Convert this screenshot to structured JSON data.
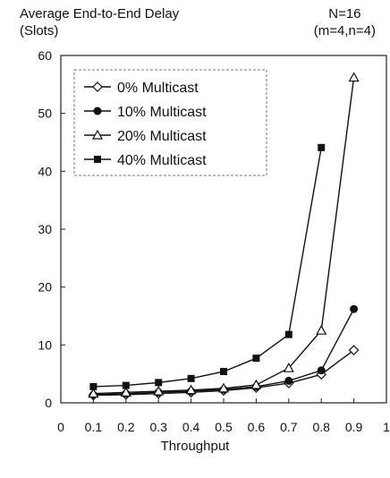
{
  "chart_data": {
    "type": "line",
    "ylabel_line1": "Average End-to-End Delay",
    "ylabel_line2": "(Slots)",
    "condition_line1": "N=16",
    "condition_line2": "(m=4,n=4)",
    "xlabel": "Throughput",
    "xlim": [
      0,
      1
    ],
    "ylim": [
      0,
      60
    ],
    "xticks": [
      "0",
      "0.1",
      "0.2",
      "0.3",
      "0.4",
      "0.5",
      "0.6",
      "0.7",
      "0.8",
      "0.9",
      "1"
    ],
    "yticks": [
      "0",
      "10",
      "20",
      "30",
      "40",
      "50",
      "60"
    ],
    "grid": false,
    "legend_position": "top-left",
    "series": [
      {
        "name": "0% Multicast",
        "marker": "diamond",
        "x": [
          0.1,
          0.2,
          0.3,
          0.4,
          0.5,
          0.6,
          0.7,
          0.8,
          0.9
        ],
        "y": [
          1.3,
          1.4,
          1.6,
          1.8,
          2.1,
          2.6,
          3.4,
          4.9,
          9.1
        ]
      },
      {
        "name": "10% Multicast",
        "marker": "circle",
        "x": [
          0.1,
          0.2,
          0.3,
          0.4,
          0.5,
          0.6,
          0.7,
          0.8,
          0.9
        ],
        "y": [
          1.4,
          1.6,
          1.8,
          2.0,
          2.3,
          2.8,
          3.8,
          5.6,
          16.2
        ]
      },
      {
        "name": "20% Multicast",
        "marker": "triangle",
        "x": [
          0.1,
          0.2,
          0.3,
          0.4,
          0.5,
          0.6,
          0.7,
          0.8,
          0.9
        ],
        "y": [
          1.6,
          1.8,
          2.0,
          2.2,
          2.5,
          3.1,
          6.0,
          12.5,
          56.2
        ]
      },
      {
        "name": "40% Multicast",
        "marker": "square",
        "x": [
          0.1,
          0.2,
          0.3,
          0.4,
          0.5,
          0.6,
          0.7,
          0.8
        ],
        "y": [
          2.8,
          3.0,
          3.5,
          4.2,
          5.4,
          7.7,
          11.8,
          44.1
        ]
      }
    ]
  }
}
